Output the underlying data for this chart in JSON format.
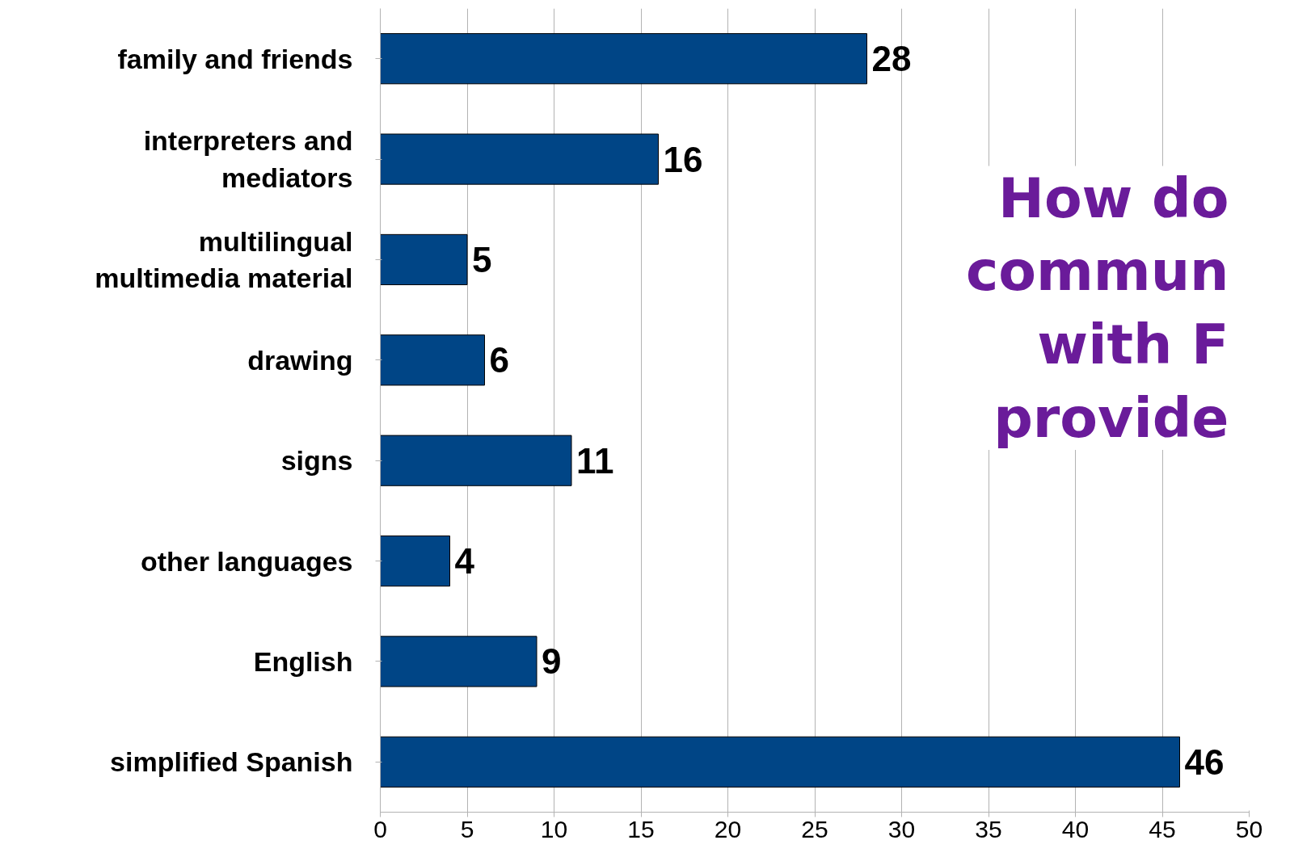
{
  "chart_data": {
    "type": "bar",
    "orientation": "horizontal",
    "categories": [
      "family and friends",
      "interpreters and\nmediators",
      "multilingual\nmultimedia material",
      "drawing",
      "signs",
      "other languages",
      "English",
      "simplified Spanish"
    ],
    "values": [
      28,
      16,
      5,
      6,
      11,
      4,
      9,
      46
    ],
    "color": "#004586",
    "xlim": [
      0,
      50
    ],
    "xticks": [
      0,
      5,
      10,
      15,
      20,
      25,
      30,
      35,
      40,
      45,
      50
    ],
    "grid": "x",
    "data_labels": true,
    "annotations": [
      "How do\ncommun\nwith F\nprovide"
    ]
  }
}
